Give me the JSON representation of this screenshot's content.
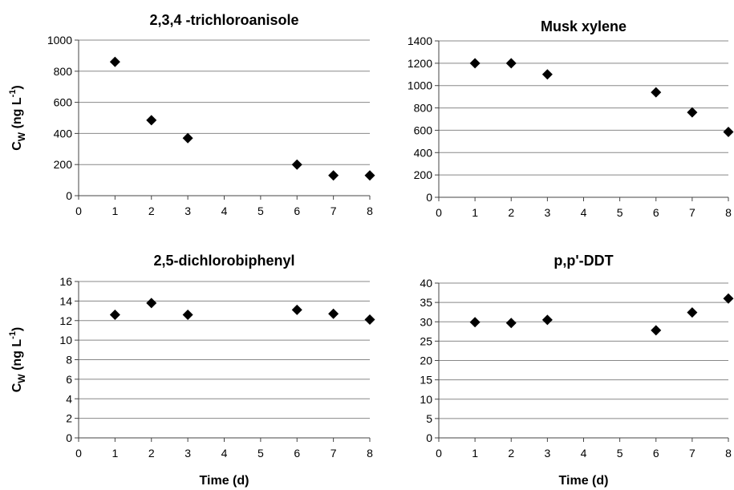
{
  "chart_data": [
    {
      "type": "scatter",
      "title": "2,3,4 -trichloroanisole",
      "xlabel": "",
      "ylabel": "C_W (ng L^-1)",
      "xlim": [
        0,
        8
      ],
      "ylim": [
        0,
        1000
      ],
      "xticks": [
        0,
        1,
        2,
        3,
        4,
        5,
        6,
        7,
        8
      ],
      "yticks": [
        0,
        200,
        400,
        600,
        800,
        1000
      ],
      "grid": true,
      "series": [
        {
          "x": [
            1,
            2,
            3,
            6,
            7,
            8
          ],
          "y": [
            860,
            485,
            370,
            200,
            130,
            130
          ]
        }
      ]
    },
    {
      "type": "scatter",
      "title": "Musk xylene",
      "xlabel": "",
      "ylabel": "",
      "xlim": [
        0,
        8
      ],
      "ylim": [
        0,
        1400
      ],
      "xticks": [
        0,
        1,
        2,
        3,
        4,
        5,
        6,
        7,
        8
      ],
      "yticks": [
        0,
        200,
        400,
        600,
        800,
        1000,
        1200,
        1400
      ],
      "grid": true,
      "series": [
        {
          "x": [
            1,
            2,
            3,
            6,
            7,
            8
          ],
          "y": [
            1200,
            1200,
            1100,
            940,
            760,
            585
          ]
        }
      ]
    },
    {
      "type": "scatter",
      "title": "2,5-dichlorobiphenyl",
      "xlabel": "Time (d)",
      "ylabel": "C_W (ng L^-1)",
      "xlim": [
        0,
        8
      ],
      "ylim": [
        0,
        16
      ],
      "xticks": [
        0,
        1,
        2,
        3,
        4,
        5,
        6,
        7,
        8
      ],
      "yticks": [
        0,
        2,
        4,
        6,
        8,
        10,
        12,
        14,
        16
      ],
      "grid": true,
      "series": [
        {
          "x": [
            1,
            2,
            3,
            6,
            7,
            8
          ],
          "y": [
            12.6,
            13.8,
            12.6,
            13.1,
            12.7,
            12.1
          ]
        }
      ]
    },
    {
      "type": "scatter",
      "title": "p,p'-DDT",
      "xlabel": "Time (d)",
      "ylabel": "",
      "xlim": [
        0,
        8
      ],
      "ylim": [
        0,
        40
      ],
      "xticks": [
        0,
        1,
        2,
        3,
        4,
        5,
        6,
        7,
        8
      ],
      "yticks": [
        0,
        5,
        10,
        15,
        20,
        25,
        30,
        35,
        40
      ],
      "grid": true,
      "series": [
        {
          "x": [
            1,
            2,
            3,
            6,
            7,
            8
          ],
          "y": [
            29.9,
            29.7,
            30.5,
            27.8,
            32.4,
            36.0
          ]
        }
      ]
    }
  ]
}
